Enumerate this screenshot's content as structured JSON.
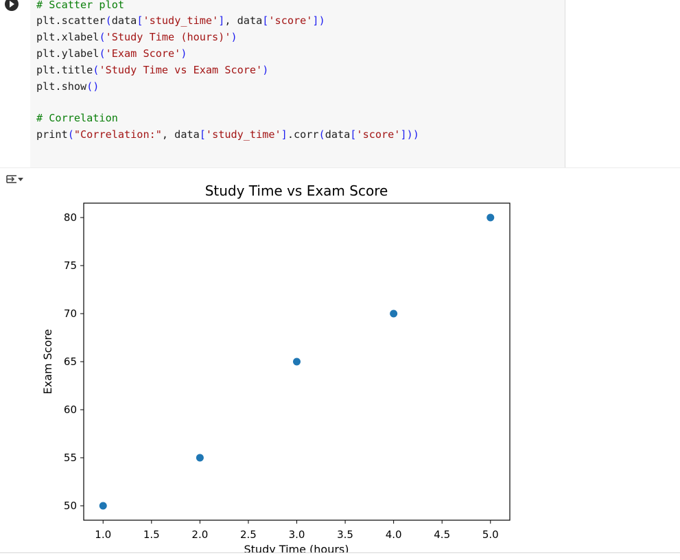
{
  "code_cell": {
    "run_icon": "play-circle-icon",
    "lines": [
      [
        {
          "t": "cm",
          "s": "# Scatter plot"
        }
      ],
      [
        {
          "t": "",
          "s": "plt.scatter"
        },
        {
          "t": "br",
          "s": "("
        },
        {
          "t": "",
          "s": "data"
        },
        {
          "t": "br",
          "s": "["
        },
        {
          "t": "st",
          "s": "'study_time'"
        },
        {
          "t": "br",
          "s": "]"
        },
        {
          "t": "",
          "s": ", data"
        },
        {
          "t": "br",
          "s": "["
        },
        {
          "t": "st",
          "s": "'score'"
        },
        {
          "t": "br",
          "s": "])"
        }
      ],
      [
        {
          "t": "",
          "s": "plt.xlabel"
        },
        {
          "t": "br",
          "s": "("
        },
        {
          "t": "st",
          "s": "'Study Time (hours)'"
        },
        {
          "t": "br",
          "s": ")"
        }
      ],
      [
        {
          "t": "",
          "s": "plt.ylabel"
        },
        {
          "t": "br",
          "s": "("
        },
        {
          "t": "st",
          "s": "'Exam Score'"
        },
        {
          "t": "br",
          "s": ")"
        }
      ],
      [
        {
          "t": "",
          "s": "plt.title"
        },
        {
          "t": "br",
          "s": "("
        },
        {
          "t": "st",
          "s": "'Study Time vs Exam Score'"
        },
        {
          "t": "br",
          "s": ")"
        }
      ],
      [
        {
          "t": "",
          "s": "plt.show"
        },
        {
          "t": "br",
          "s": "()"
        }
      ],
      [],
      [
        {
          "t": "cm",
          "s": "# Correlation"
        }
      ],
      [
        {
          "t": "",
          "s": "print"
        },
        {
          "t": "br",
          "s": "("
        },
        {
          "t": "st",
          "s": "\"Correlation:\""
        },
        {
          "t": "",
          "s": ", data"
        },
        {
          "t": "br",
          "s": "["
        },
        {
          "t": "st",
          "s": "'study_time'"
        },
        {
          "t": "br",
          "s": "]"
        },
        {
          "t": "",
          "s": ".corr"
        },
        {
          "t": "br",
          "s": "("
        },
        {
          "t": "",
          "s": "data"
        },
        {
          "t": "br",
          "s": "["
        },
        {
          "t": "st",
          "s": "'score'"
        },
        {
          "t": "br",
          "s": "]))"
        }
      ]
    ]
  },
  "output": {
    "toggle_icon": "output-expand-icon"
  },
  "colors": {
    "point": "#1f77b4",
    "comment": "#0a7f0a",
    "string": "#a31515",
    "bracket": "#1d1df0"
  },
  "chart_data": {
    "type": "scatter",
    "title": "Study Time vs Exam Score",
    "xlabel": "Study Time (hours)",
    "ylabel": "Exam Score",
    "x": [
      1.0,
      2.0,
      3.0,
      4.0,
      5.0
    ],
    "y": [
      50,
      55,
      65,
      70,
      80
    ],
    "xlim": [
      0.8,
      5.2
    ],
    "ylim": [
      48.5,
      81.5
    ],
    "xticks": [
      "1.0",
      "1.5",
      "2.0",
      "2.5",
      "3.0",
      "3.5",
      "4.0",
      "4.5",
      "5.0"
    ],
    "yticks": [
      "50",
      "55",
      "60",
      "65",
      "70",
      "75",
      "80"
    ],
    "grid": false
  }
}
